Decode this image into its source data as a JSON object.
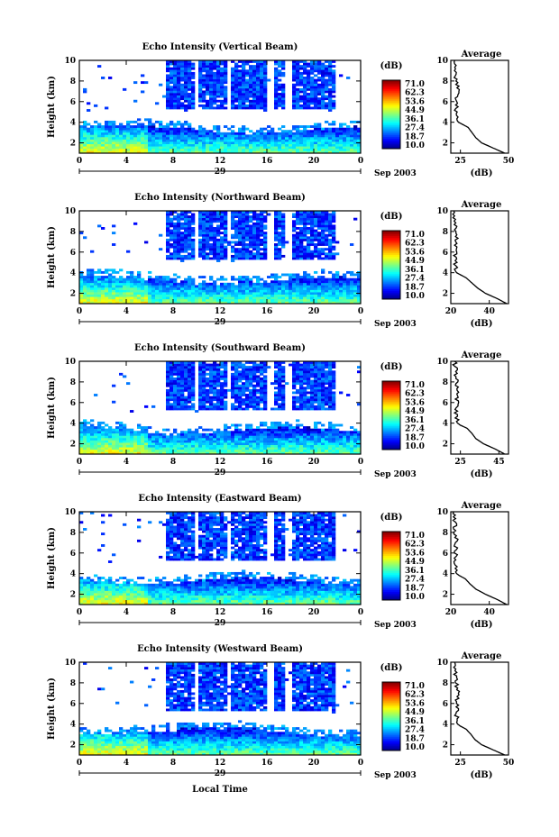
{
  "chart_data": [
    {
      "type": "heatmap",
      "title": "Echo Intensity (Vertical Beam)",
      "ylabel": "Height (km)",
      "x_ticks": [
        "0",
        "4",
        "8",
        "12",
        "16",
        "20",
        "0"
      ],
      "y_ticks": [
        "2",
        "4",
        "6",
        "8",
        "10"
      ],
      "xlim": [
        0,
        24
      ],
      "ylim": [
        1,
        10
      ],
      "date_day": "29",
      "date_month_year": "Sep 2003",
      "colorbar_unit": "(dB)",
      "colorbar_ticks": [
        "71.0",
        "62.3",
        "53.6",
        "44.9",
        "36.1",
        "27.4",
        "18.7",
        "10.0"
      ],
      "colorbar_range": [
        10.0,
        71.0
      ],
      "data_description_values": {
        "boundary_layer_top_km": 3.7,
        "clouds": [
          {
            "start_h": 7.5,
            "end_h": 21.8,
            "bottom_km": 6.0,
            "top_km": 10.0
          }
        ]
      },
      "profile": {
        "title": "Average",
        "xlabel": "(dB)",
        "x_ticks": [
          "25",
          "50"
        ],
        "y_ticks": [
          "2",
          "4",
          "6",
          "8",
          "10"
        ],
        "xlim": [
          20,
          50
        ],
        "height_km": [
          1.0,
          1.5,
          2.0,
          2.5,
          3.0,
          3.5,
          3.8,
          4.0,
          5.0,
          6.0,
          7.0,
          8.0,
          9.0,
          10.0
        ],
        "db": [
          48,
          42,
          36,
          33,
          31,
          29,
          26,
          24,
          23,
          23,
          23.5,
          23,
          22.5,
          22
        ]
      }
    },
    {
      "type": "heatmap",
      "title": "Echo Intensity (Northward Beam)",
      "ylabel": "Height (km)",
      "x_ticks": [
        "0",
        "4",
        "8",
        "12",
        "16",
        "20",
        "0"
      ],
      "y_ticks": [
        "2",
        "4",
        "6",
        "8",
        "10"
      ],
      "xlim": [
        0,
        24
      ],
      "ylim": [
        1,
        10
      ],
      "date_day": "29",
      "date_month_year": "Sep 2003",
      "colorbar_unit": "(dB)",
      "colorbar_ticks": [
        "71.0",
        "62.3",
        "53.6",
        "44.9",
        "36.1",
        "27.4",
        "18.7",
        "10.0"
      ],
      "colorbar_range": [
        10.0,
        71.0
      ],
      "profile": {
        "title": "Average",
        "xlabel": "(dB)",
        "x_ticks": [
          "20",
          "40"
        ],
        "y_ticks": [
          "2",
          "4",
          "6",
          "8",
          "10"
        ],
        "xlim": [
          20,
          50
        ],
        "height_km": [
          1.0,
          1.5,
          2.0,
          2.5,
          3.0,
          3.5,
          3.8,
          4.0,
          5.0,
          6.0,
          7.0,
          8.0,
          9.0,
          10.0
        ],
        "db": [
          49,
          44,
          38,
          34,
          31,
          28,
          25,
          23,
          22.5,
          22.5,
          23,
          22.5,
          22,
          21.5
        ]
      }
    },
    {
      "type": "heatmap",
      "title": "Echo Intensity (Southward Beam)",
      "ylabel": "Height (km)",
      "x_ticks": [
        "0",
        "4",
        "8",
        "12",
        "16",
        "20",
        "0"
      ],
      "y_ticks": [
        "2",
        "4",
        "6",
        "8",
        "10"
      ],
      "xlim": [
        0,
        24
      ],
      "ylim": [
        1,
        10
      ],
      "date_day": "29",
      "date_month_year": "Sep 2003",
      "colorbar_unit": "(dB)",
      "colorbar_ticks": [
        "71.0",
        "62.3",
        "53.6",
        "44.9",
        "36.1",
        "27.4",
        "18.7",
        "10.0"
      ],
      "colorbar_range": [
        10.0,
        71.0
      ],
      "profile": {
        "title": "Average",
        "xlabel": "(dB)",
        "x_ticks": [
          "25",
          "45"
        ],
        "y_ticks": [
          "2",
          "4",
          "6",
          "8",
          "10"
        ],
        "xlim": [
          20,
          50
        ],
        "height_km": [
          1.0,
          1.5,
          2.0,
          2.5,
          3.0,
          3.5,
          3.8,
          4.0,
          5.0,
          6.0,
          7.0,
          8.0,
          9.0,
          10.0
        ],
        "db": [
          48,
          43,
          37,
          33,
          31,
          28.5,
          25,
          23.5,
          23,
          23,
          23.5,
          23,
          22.5,
          22
        ]
      }
    },
    {
      "type": "heatmap",
      "title": "Echo Intensity (Eastward Beam)",
      "ylabel": "Height (km)",
      "x_ticks": [
        "0",
        "4",
        "8",
        "12",
        "16",
        "20",
        "0"
      ],
      "y_ticks": [
        "2",
        "4",
        "6",
        "8",
        "10"
      ],
      "xlim": [
        0,
        24
      ],
      "ylim": [
        1,
        10
      ],
      "date_day": "29",
      "date_month_year": "Sep 2003",
      "colorbar_unit": "(dB)",
      "colorbar_ticks": [
        "71.0",
        "62.3",
        "53.6",
        "44.9",
        "36.1",
        "27.4",
        "18.7",
        "10.0"
      ],
      "colorbar_range": [
        10.0,
        71.0
      ],
      "profile": {
        "title": "Average",
        "xlabel": "(dB)",
        "x_ticks": [
          "20",
          "40"
        ],
        "y_ticks": [
          "2",
          "4",
          "6",
          "8",
          "10"
        ],
        "xlim": [
          20,
          50
        ],
        "height_km": [
          1.0,
          1.5,
          2.0,
          2.5,
          3.0,
          3.5,
          3.8,
          4.0,
          5.0,
          6.0,
          7.0,
          8.0,
          9.0,
          10.0
        ],
        "db": [
          49,
          44,
          38,
          33,
          30,
          27.5,
          24.5,
          23,
          22.5,
          22.5,
          23,
          22.5,
          22,
          21.5
        ]
      }
    },
    {
      "type": "heatmap",
      "title": "Echo Intensity (Westward Beam)",
      "ylabel": "Height (km)",
      "x_ticks": [
        "0",
        "4",
        "8",
        "12",
        "16",
        "20",
        "0"
      ],
      "y_ticks": [
        "2",
        "4",
        "6",
        "8",
        "10"
      ],
      "xlim": [
        0,
        24
      ],
      "ylim": [
        1,
        10
      ],
      "date_day": "29",
      "date_month_year": "Sep 2003",
      "colorbar_unit": "(dB)",
      "colorbar_ticks": [
        "71.0",
        "62.3",
        "53.6",
        "44.9",
        "36.1",
        "27.4",
        "18.7",
        "10.0"
      ],
      "colorbar_range": [
        10.0,
        71.0
      ],
      "profile": {
        "title": "Average",
        "xlabel": "(dB)",
        "x_ticks": [
          "25",
          "50"
        ],
        "y_ticks": [
          "2",
          "4",
          "6",
          "8",
          "10"
        ],
        "xlim": [
          20,
          50
        ],
        "height_km": [
          1.0,
          1.5,
          2.0,
          2.5,
          3.0,
          3.5,
          3.8,
          4.0,
          5.0,
          6.0,
          7.0,
          8.0,
          9.0,
          10.0
        ],
        "db": [
          48,
          42,
          36,
          32.5,
          30.5,
          28,
          25,
          23.5,
          23,
          23,
          23.5,
          23,
          22.5,
          22
        ]
      }
    }
  ],
  "xlabel_bottom": "Local Time"
}
